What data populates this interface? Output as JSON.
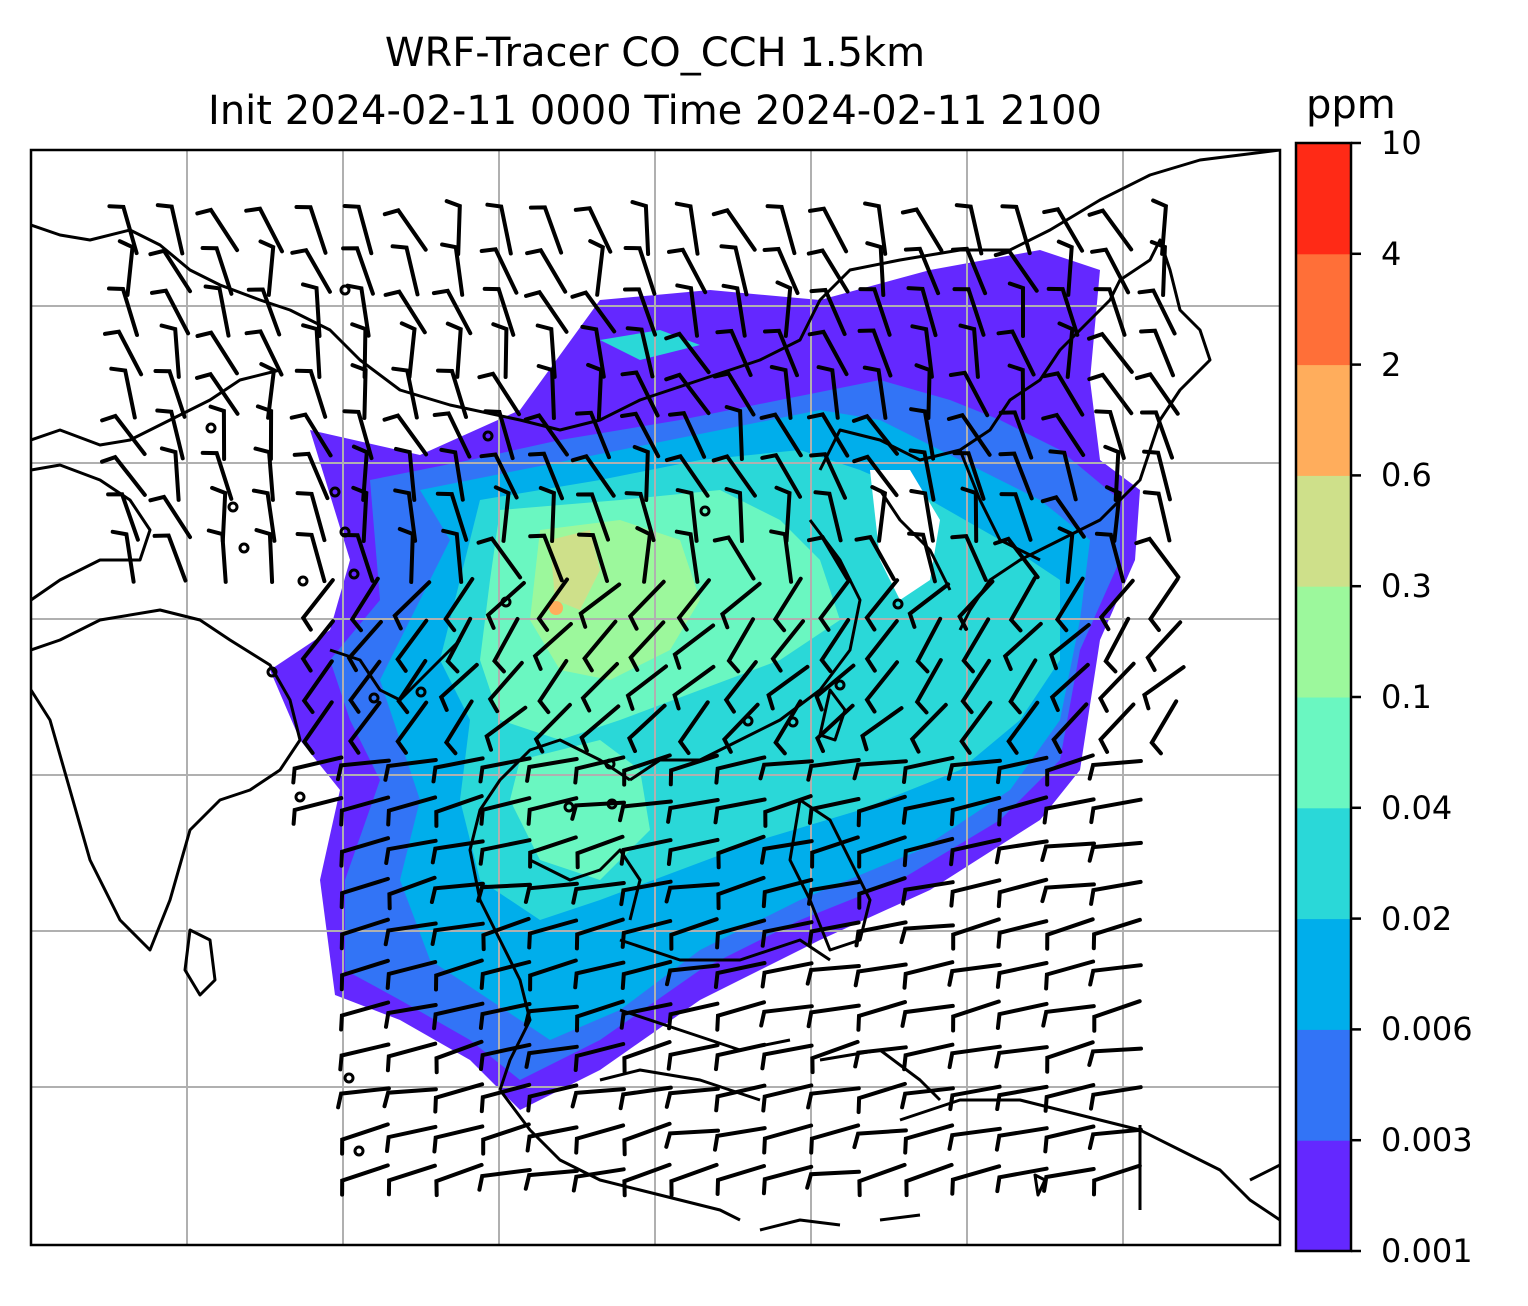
{
  "title_line1": "WRF-Tracer CO_CCH 1.5km",
  "title_line2": "Init 2024-02-11 0000 Time 2024-02-11 2100",
  "colorbar": {
    "unit": "ppm",
    "levels": [
      "0.001",
      "0.003",
      "0.006",
      "0.02",
      "0.04",
      "0.1",
      "0.3",
      "0.6",
      "2",
      "4",
      "10"
    ],
    "colors": [
      "#6428ff",
      "#3274f6",
      "#00aeeb",
      "#2ad8d8",
      "#6af7c1",
      "#9cf89c",
      "#cee08a",
      "#ffad5c",
      "#ff6f38",
      "#ff2a16"
    ]
  },
  "map": {
    "region": "East Asia / Southeast Asia",
    "variable": "CO_CCH tracer concentration at 1.5km",
    "overlays": [
      "coastlines",
      "country borders",
      "graticule",
      "wind barbs"
    ]
  }
}
